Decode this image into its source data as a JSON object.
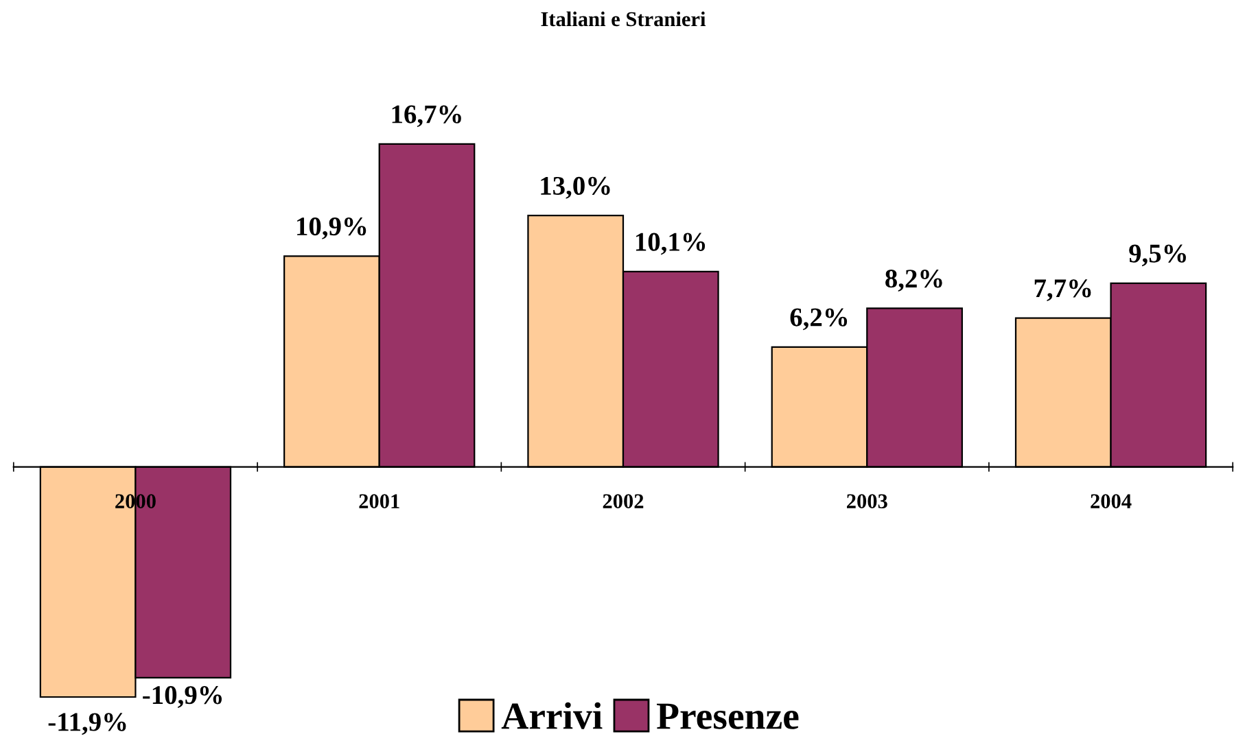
{
  "chart_data": {
    "type": "bar",
    "title": "Italiani e Stranieri",
    "categories": [
      "2000",
      "2001",
      "2002",
      "2003",
      "2004"
    ],
    "series": [
      {
        "name": "Arrivi",
        "color": "#ffcc99",
        "values": [
          -11.9,
          10.9,
          13.0,
          6.2,
          7.7
        ],
        "value_labels": [
          "-11,9%",
          "10,9%",
          "13,0%",
          "6,2%",
          "7,7%"
        ]
      },
      {
        "name": "Presenze",
        "color": "#993366",
        "values": [
          -10.9,
          16.7,
          10.1,
          8.2,
          9.5
        ],
        "value_labels": [
          "-10,9%",
          "16,7%",
          "10,1%",
          "8,2%",
          "9,5%"
        ]
      }
    ],
    "legend": "bottom",
    "tick_labels": "x"
  }
}
